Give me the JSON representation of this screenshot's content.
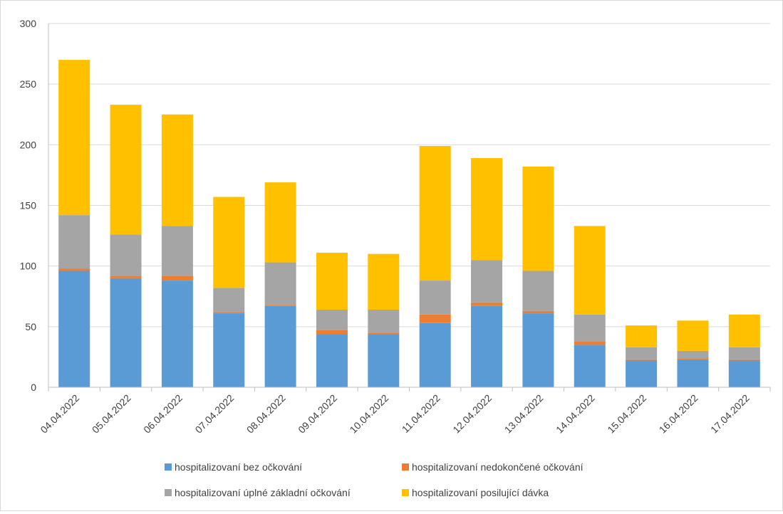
{
  "chart_data": {
    "type": "bar",
    "stacked": true,
    "title": "",
    "xlabel": "",
    "ylabel": "",
    "ylim": [
      0,
      300
    ],
    "yticks": [
      0,
      50,
      100,
      150,
      200,
      250,
      300
    ],
    "grid": true,
    "legend_position": "bottom",
    "categories": [
      "04.04.2022",
      "05.04.2022",
      "06.04.2022",
      "07.04.2022",
      "08.04.2022",
      "09.04.2022",
      "10.04.2022",
      "11.04.2022",
      "12.04.2022",
      "13.04.2022",
      "14.04.2022",
      "15.04.2022",
      "16.04.2022",
      "17.04.2022"
    ],
    "series": [
      {
        "name": "hospitalizovaní bez očkování",
        "color": "#5b9bd5",
        "values": [
          96,
          90,
          88,
          61,
          67,
          44,
          44,
          53,
          67,
          61,
          35,
          22,
          23,
          22
        ]
      },
      {
        "name": "hospitalizovaní nedokončené očkování",
        "color": "#ed7d31",
        "values": [
          2,
          2,
          4,
          1,
          1,
          3,
          1,
          7,
          3,
          2,
          3,
          1,
          1,
          1
        ]
      },
      {
        "name": "hospitalizovaní úplné základní očkování",
        "color": "#a5a5a5",
        "values": [
          44,
          34,
          41,
          20,
          35,
          17,
          19,
          28,
          35,
          33,
          22,
          10,
          6,
          10
        ]
      },
      {
        "name": "hospitalizovaní posilující dávka",
        "color": "#ffc000",
        "values": [
          128,
          107,
          92,
          75,
          66,
          47,
          46,
          111,
          84,
          86,
          73,
          18,
          25,
          27
        ]
      }
    ]
  }
}
